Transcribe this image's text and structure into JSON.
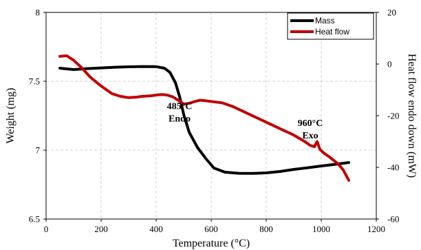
{
  "chart_data": {
    "type": "line",
    "xlabel": "Temperature (°C)",
    "ylabel": "Weight (mg)",
    "y2label": "Heat flow endo down (mW)",
    "xlim": [
      0,
      1200
    ],
    "ylim": [
      6.5,
      8
    ],
    "y2lim": [
      -60,
      20
    ],
    "xticks": [
      0,
      200,
      400,
      600,
      800,
      1000,
      1200
    ],
    "yticks": [
      6.5,
      7,
      7.5,
      8
    ],
    "y2ticks": [
      -60,
      -40,
      -20,
      0,
      20
    ],
    "xtick_labels": [
      "0",
      "200",
      "400",
      "600",
      "800",
      "1000",
      "1200"
    ],
    "ytick_labels": [
      "6.5",
      "7",
      "7.5",
      "8"
    ],
    "y2tick_labels": [
      "-60",
      "-40",
      "-20",
      "0",
      "20"
    ],
    "grid": true,
    "legend_position": "top-right",
    "series": [
      {
        "name": "Mass",
        "axis": "left",
        "color": "#000000",
        "points": [
          [
            50,
            7.595
          ],
          [
            100,
            7.585
          ],
          [
            150,
            7.592
          ],
          [
            200,
            7.597
          ],
          [
            250,
            7.602
          ],
          [
            300,
            7.605
          ],
          [
            350,
            7.607
          ],
          [
            400,
            7.606
          ],
          [
            430,
            7.595
          ],
          [
            450,
            7.565
          ],
          [
            470,
            7.49
          ],
          [
            485,
            7.39
          ],
          [
            500,
            7.26
          ],
          [
            520,
            7.13
          ],
          [
            550,
            7.02
          ],
          [
            580,
            6.94
          ],
          [
            610,
            6.87
          ],
          [
            650,
            6.84
          ],
          [
            700,
            6.832
          ],
          [
            750,
            6.831
          ],
          [
            800,
            6.835
          ],
          [
            850,
            6.845
          ],
          [
            900,
            6.86
          ],
          [
            950,
            6.872
          ],
          [
            1000,
            6.885
          ],
          [
            1050,
            6.897
          ],
          [
            1100,
            6.91
          ]
        ]
      },
      {
        "name": "Heat flow",
        "axis": "right",
        "color": "#c00000",
        "points": [
          [
            50,
            3
          ],
          [
            75,
            3.2
          ],
          [
            100,
            1.5
          ],
          [
            130,
            -1.5
          ],
          [
            160,
            -5
          ],
          [
            200,
            -8.5
          ],
          [
            240,
            -11.5
          ],
          [
            270,
            -12.5
          ],
          [
            300,
            -13
          ],
          [
            330,
            -12.8
          ],
          [
            350,
            -12.5
          ],
          [
            380,
            -12.3
          ],
          [
            400,
            -12
          ],
          [
            420,
            -11.8
          ],
          [
            440,
            -12
          ],
          [
            460,
            -12.7
          ],
          [
            480,
            -14
          ],
          [
            500,
            -15.5
          ],
          [
            520,
            -15.2
          ],
          [
            540,
            -14.5
          ],
          [
            560,
            -14
          ],
          [
            580,
            -14.2
          ],
          [
            600,
            -14.5
          ],
          [
            640,
            -15
          ],
          [
            680,
            -16.5
          ],
          [
            720,
            -18.5
          ],
          [
            760,
            -20.5
          ],
          [
            800,
            -22.5
          ],
          [
            850,
            -25
          ],
          [
            900,
            -27.5
          ],
          [
            940,
            -30
          ],
          [
            960,
            -31.5
          ],
          [
            975,
            -32
          ],
          [
            985,
            -30
          ],
          [
            995,
            -33
          ],
          [
            1010,
            -34.5
          ],
          [
            1030,
            -36
          ],
          [
            1060,
            -38.5
          ],
          [
            1080,
            -41
          ],
          [
            1100,
            -45
          ]
        ]
      }
    ],
    "annotations": [
      {
        "lines": [
          "485°C",
          "Endo"
        ],
        "x": 485,
        "y2": -17.5
      },
      {
        "lines": [
          "960°C",
          "Exo"
        ],
        "x": 960,
        "y2": -24
      }
    ]
  }
}
